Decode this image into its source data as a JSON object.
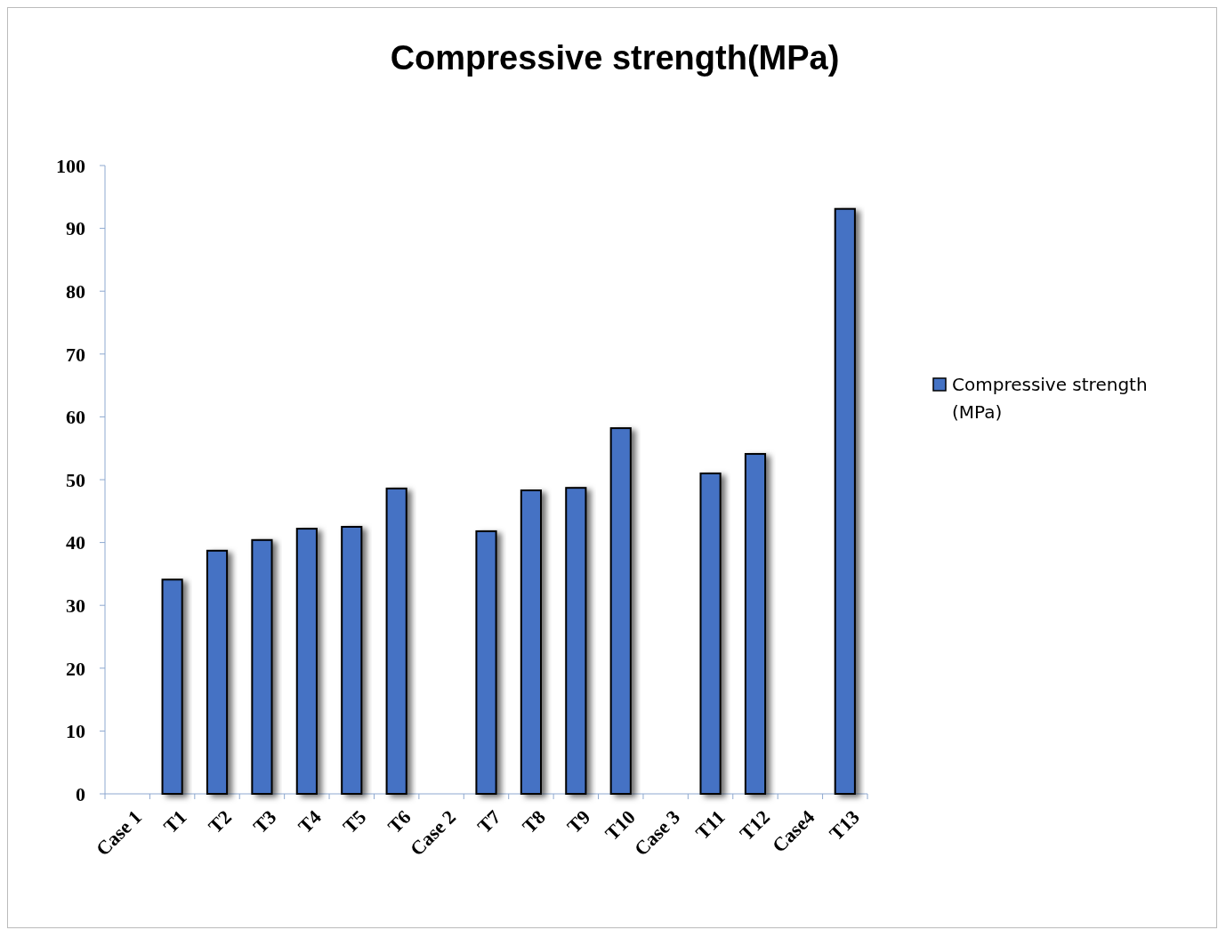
{
  "chart_data": {
    "type": "bar",
    "title": "Compressive strength(MPa)",
    "categories": [
      "Case 1",
      "T1",
      "T2",
      "T3",
      "T4",
      "T5",
      "T6",
      "Case 2",
      "T7",
      "T8",
      "T9",
      "T10",
      "Case 3",
      "T11",
      "T12",
      "Case4",
      "T13"
    ],
    "series": [
      {
        "name": "Compressive strength (MPa)",
        "color": "#4472c4",
        "values": [
          null,
          34.1,
          38.7,
          40.4,
          42.2,
          42.5,
          48.6,
          null,
          41.8,
          48.3,
          48.7,
          58.2,
          null,
          51.0,
          54.1,
          null,
          93.1
        ]
      }
    ],
    "ylim": [
      0,
      100
    ],
    "yticks": [
      0,
      10,
      20,
      30,
      40,
      50,
      60,
      70,
      80,
      90,
      100
    ],
    "grid": false,
    "legend": "right"
  }
}
